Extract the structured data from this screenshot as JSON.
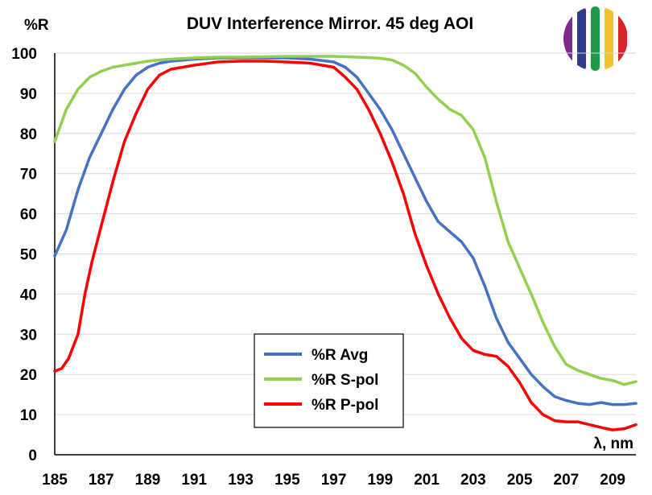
{
  "chart_data": {
    "type": "line",
    "title": "DUV Interference Mirror. 45 deg AOI",
    "ylabel": "%R",
    "xlabel": "λ, nm",
    "xlim": [
      185,
      210
    ],
    "ylim": [
      0,
      100
    ],
    "x_ticks": [
      "185",
      "187",
      "189",
      "191",
      "193",
      "195",
      "197",
      "199",
      "201",
      "203",
      "205",
      "207",
      "209"
    ],
    "y_ticks": [
      "0",
      "10",
      "20",
      "30",
      "40",
      "50",
      "60",
      "70",
      "80",
      "90",
      "100"
    ],
    "grid": "horizontal",
    "legend_position": "bottom-center",
    "series": [
      {
        "name": "%R Avg",
        "color": "#4472C4",
        "x": [
          185,
          185.5,
          186,
          186.5,
          187,
          187.5,
          188,
          188.5,
          189,
          189.5,
          190,
          191,
          192,
          193,
          194,
          195,
          196,
          197,
          197.5,
          198,
          198.5,
          199,
          199.5,
          200,
          200.5,
          201,
          201.5,
          202,
          202.5,
          203,
          203.5,
          204,
          204.5,
          205,
          205.5,
          206,
          206.5,
          207,
          207.5,
          208,
          208.5,
          209,
          209.5,
          210
        ],
        "values": [
          49.5,
          56,
          66,
          74,
          80,
          86,
          91,
          94.5,
          96.5,
          97.5,
          98,
          98.5,
          98.8,
          98.8,
          98.8,
          98.8,
          98.5,
          97.8,
          96.5,
          94,
          90,
          86,
          81,
          75,
          69,
          63,
          58,
          55.5,
          53,
          49,
          42,
          34,
          28,
          24,
          20,
          17,
          14.5,
          13.5,
          12.8,
          12.5,
          13,
          12.5,
          12.5,
          12.8
        ]
      },
      {
        "name": "%R S-pol",
        "color": "#92D050",
        "x": [
          185,
          185.5,
          186,
          186.5,
          187,
          187.5,
          188,
          188.5,
          189,
          189.5,
          190,
          191,
          192,
          193,
          194,
          195,
          196,
          197,
          197.5,
          198,
          198.5,
          199,
          199.5,
          200,
          200.5,
          201,
          201.5,
          202,
          202.5,
          203,
          203.5,
          204,
          204.5,
          205,
          205.5,
          206,
          206.5,
          207,
          207.5,
          208,
          208.5,
          209,
          209.5,
          210
        ],
        "values": [
          78,
          86,
          91,
          94,
          95.5,
          96.5,
          97,
          97.5,
          98,
          98.3,
          98.5,
          98.8,
          99,
          99,
          99.1,
          99.2,
          99.2,
          99.2,
          99.1,
          99,
          98.9,
          98.7,
          98.3,
          97,
          95,
          91.5,
          88.5,
          86,
          84.5,
          81,
          74,
          63,
          53,
          46.5,
          40,
          33,
          27,
          22.5,
          21,
          20,
          19,
          18.5,
          17.5,
          18.2
        ]
      },
      {
        "name": "%R P-pol",
        "color": "#FF0000",
        "x": [
          185,
          185.3,
          185.6,
          186,
          186.3,
          186.6,
          187,
          187.5,
          188,
          188.5,
          189,
          189.5,
          190,
          191,
          192,
          193,
          194,
          195,
          196,
          197,
          197.5,
          198,
          198.5,
          199,
          199.5,
          200,
          200.5,
          201,
          201.5,
          202,
          202.5,
          203,
          203.5,
          204,
          204.5,
          205,
          205.5,
          206,
          206.5,
          207,
          207.5,
          208,
          208.5,
          209,
          209.5,
          210
        ],
        "values": [
          20.8,
          21.5,
          24,
          30,
          40,
          48,
          57,
          68,
          78,
          85,
          91,
          94.5,
          96,
          97,
          97.8,
          98,
          98,
          97.8,
          97.5,
          96.5,
          94,
          91,
          86,
          80,
          73,
          65,
          55,
          47,
          40,
          34,
          29,
          26,
          25,
          24.5,
          22,
          18,
          13,
          10,
          8.5,
          8.2,
          8.2,
          7.5,
          6.8,
          6.2,
          6.5,
          7.5
        ]
      }
    ]
  }
}
